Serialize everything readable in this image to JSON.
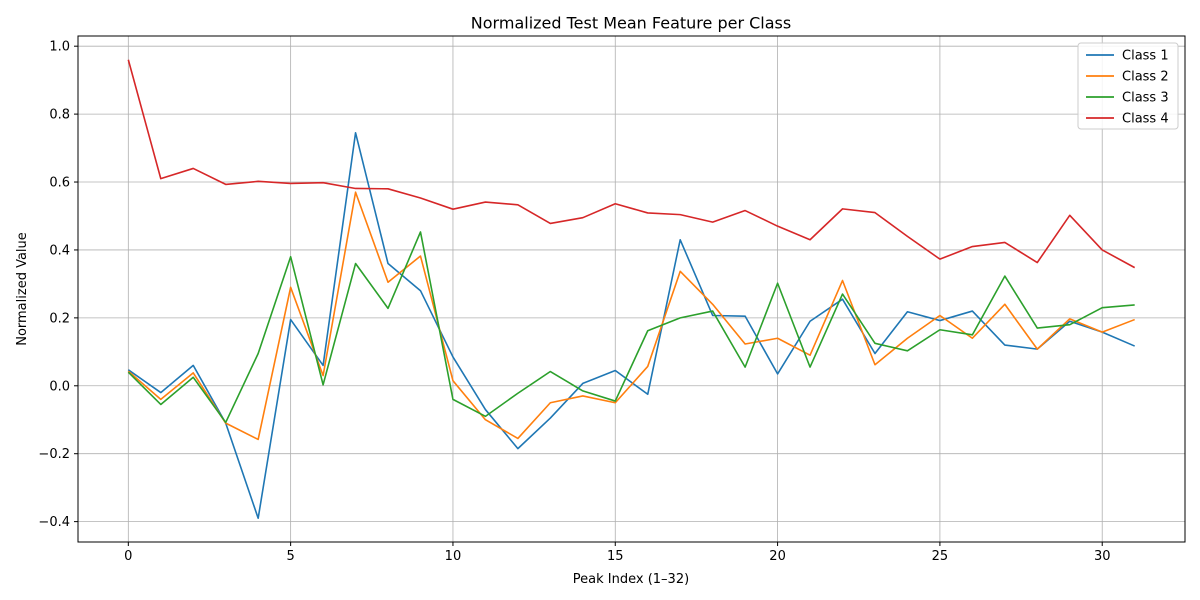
{
  "chart_data": {
    "type": "line",
    "title": "Normalized Test Mean Feature per Class",
    "xlabel": "Peak Index (1–32)",
    "ylabel": "Normalized Value",
    "xlim": [
      -1.55,
      32.55
    ],
    "ylim": [
      -0.46,
      1.03
    ],
    "xticks": [
      0,
      5,
      10,
      15,
      20,
      25,
      30
    ],
    "yticks": [
      -0.4,
      -0.2,
      0.0,
      0.2,
      0.4,
      0.6,
      0.8,
      1.0
    ],
    "xtick_labels": [
      "0",
      "5",
      "10",
      "15",
      "20",
      "25",
      "30"
    ],
    "ytick_labels": [
      "−0.4",
      "−0.2",
      "0.0",
      "0.2",
      "0.4",
      "0.6",
      "0.8",
      "1.0"
    ],
    "grid": true,
    "legend_position": "top-right",
    "x": [
      0,
      1,
      2,
      3,
      4,
      5,
      6,
      7,
      8,
      9,
      10,
      11,
      12,
      13,
      14,
      15,
      16,
      17,
      18,
      19,
      20,
      21,
      22,
      23,
      24,
      25,
      26,
      27,
      28,
      29,
      30,
      31
    ],
    "series": [
      {
        "name": "Class 1",
        "color": "#1f77b4",
        "values": [
          0.047,
          -0.02,
          0.06,
          -0.11,
          -0.39,
          0.195,
          0.06,
          0.745,
          0.36,
          0.28,
          0.085,
          -0.07,
          -0.185,
          -0.095,
          0.007,
          0.045,
          -0.025,
          0.43,
          0.207,
          0.205,
          0.035,
          0.19,
          0.255,
          0.095,
          0.218,
          0.192,
          0.22,
          0.12,
          0.108,
          0.19,
          0.158,
          0.117
        ]
      },
      {
        "name": "Class 2",
        "color": "#ff7f0e",
        "values": [
          0.043,
          -0.04,
          0.038,
          -0.11,
          -0.158,
          0.29,
          0.03,
          0.57,
          0.305,
          0.382,
          0.015,
          -0.1,
          -0.155,
          -0.05,
          -0.03,
          -0.05,
          0.057,
          0.337,
          0.24,
          0.123,
          0.14,
          0.09,
          0.31,
          0.062,
          0.14,
          0.207,
          0.14,
          0.24,
          0.108,
          0.197,
          0.158,
          0.195
        ]
      },
      {
        "name": "Class 3",
        "color": "#2ca02c",
        "values": [
          0.04,
          -0.055,
          0.025,
          -0.108,
          0.095,
          0.38,
          0.003,
          0.36,
          0.228,
          0.453,
          -0.04,
          -0.09,
          -0.022,
          0.042,
          -0.015,
          -0.045,
          0.162,
          0.2,
          0.22,
          0.055,
          0.302,
          0.055,
          0.27,
          0.125,
          0.103,
          0.165,
          0.15,
          0.323,
          0.17,
          0.18,
          0.23,
          0.238
        ]
      },
      {
        "name": "Class 4",
        "color": "#d62728",
        "values": [
          0.96,
          0.61,
          0.64,
          0.593,
          0.602,
          0.596,
          0.598,
          0.581,
          0.58,
          0.553,
          0.52,
          0.541,
          0.533,
          0.478,
          0.495,
          0.536,
          0.509,
          0.504,
          0.482,
          0.516,
          0.47,
          0.43,
          0.521,
          0.51,
          0.44,
          0.373,
          0.41,
          0.422,
          0.363,
          0.502,
          0.4,
          0.348
        ]
      }
    ]
  }
}
